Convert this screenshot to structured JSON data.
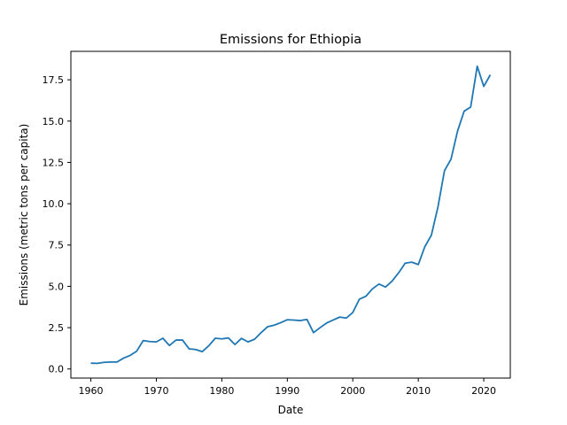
{
  "chart_data": {
    "type": "line",
    "title": "Emissions for Ethiopia",
    "xlabel": "Date",
    "ylabel": "Emissions (metric tons per capita)",
    "xlim": [
      1956.95,
      2024.05
    ],
    "ylim": [
      -0.55,
      19.22
    ],
    "xticks": [
      1960,
      1970,
      1980,
      1990,
      2000,
      2010,
      2020
    ],
    "yticks": [
      0.0,
      2.5,
      5.0,
      7.5,
      10.0,
      12.5,
      15.0,
      17.5
    ],
    "grid": false,
    "legend": "none",
    "series": [
      {
        "color": "#1f77b4",
        "x": [
          1960,
          1961,
          1962,
          1963,
          1964,
          1965,
          1966,
          1967,
          1968,
          1969,
          1970,
          1971,
          1972,
          1973,
          1974,
          1975,
          1976,
          1977,
          1978,
          1979,
          1980,
          1981,
          1982,
          1983,
          1984,
          1985,
          1986,
          1987,
          1988,
          1989,
          1990,
          1991,
          1992,
          1993,
          1994,
          1995,
          1996,
          1997,
          1998,
          1999,
          2000,
          2001,
          2002,
          2003,
          2004,
          2005,
          2006,
          2007,
          2008,
          2009,
          2010,
          2011,
          2012,
          2013,
          2014,
          2015,
          2016,
          2017,
          2018,
          2019,
          2020,
          2021
        ],
        "y": [
          0.35,
          0.34,
          0.4,
          0.42,
          0.42,
          0.66,
          0.82,
          1.08,
          1.72,
          1.66,
          1.64,
          1.86,
          1.42,
          1.75,
          1.75,
          1.22,
          1.18,
          1.05,
          1.4,
          1.86,
          1.82,
          1.88,
          1.48,
          1.85,
          1.64,
          1.8,
          2.2,
          2.56,
          2.65,
          2.8,
          2.98,
          2.96,
          2.93,
          3.0,
          2.2,
          2.5,
          2.78,
          2.96,
          3.14,
          3.08,
          3.42,
          4.22,
          4.4,
          4.85,
          5.14,
          4.96,
          5.32,
          5.82,
          6.4,
          6.46,
          6.32,
          7.4,
          8.1,
          9.8,
          12.0,
          12.7,
          14.4,
          15.6,
          15.85,
          18.32,
          17.1,
          17.8
        ]
      }
    ]
  }
}
